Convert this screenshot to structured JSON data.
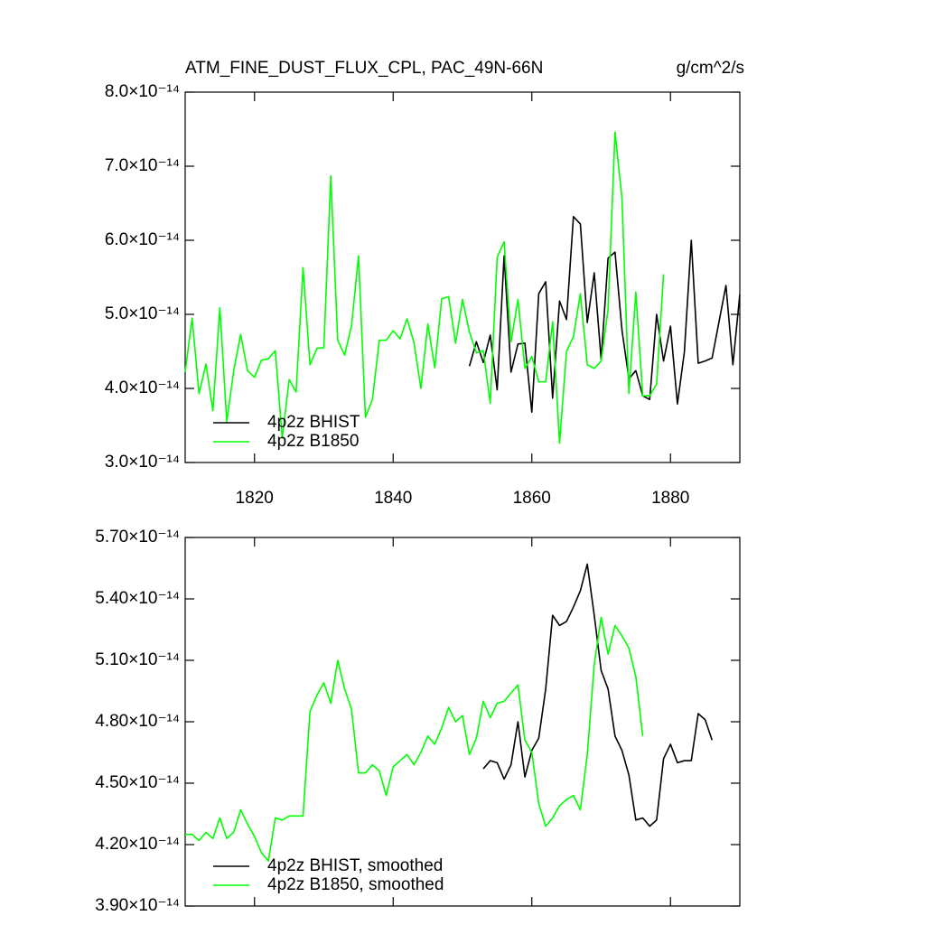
{
  "chart_data": [
    {
      "type": "line",
      "title": "ATM_FINE_DUST_FLUX_CPL, PAC_49N-66N",
      "units_label": "g/cm^2/s",
      "xlim": [
        1810,
        1890
      ],
      "xticks": [
        1820,
        1840,
        1860,
        1880
      ],
      "xtick_labels": true,
      "ylim": [
        3e-14,
        8e-14
      ],
      "yticks": [
        {
          "value": 3e-14,
          "label": "3.0×10⁻¹⁴"
        },
        {
          "value": 4e-14,
          "label": "4.0×10⁻¹⁴"
        },
        {
          "value": 5e-14,
          "label": "5.0×10⁻¹⁴"
        },
        {
          "value": 6e-14,
          "label": "6.0×10⁻¹⁴"
        },
        {
          "value": 7e-14,
          "label": "7.0×10⁻¹⁴"
        },
        {
          "value": 8e-14,
          "label": "8.0×10⁻¹⁴"
        }
      ],
      "legend": "lower left",
      "series": [
        {
          "name": "4p2z BHIST",
          "color": "#000000",
          "x": [
            1851,
            1852,
            1853,
            1854,
            1855,
            1856,
            1857,
            1858,
            1859,
            1860,
            1861,
            1862,
            1863,
            1864,
            1865,
            1866,
            1867,
            1868,
            1869,
            1870,
            1871,
            1872,
            1873,
            1874,
            1875,
            1876,
            1877,
            1878,
            1879,
            1880,
            1881,
            1882,
            1883,
            1884,
            1885,
            1886,
            1887,
            1888,
            1889,
            1890
          ],
          "values": [
            4.3e-14,
            4.63e-14,
            4.35e-14,
            4.72e-14,
            3.98e-14,
            5.79e-14,
            4.22e-14,
            4.6e-14,
            4.61e-14,
            3.68e-14,
            5.28e-14,
            5.44e-14,
            3.87e-14,
            5.18e-14,
            4.93e-14,
            6.32e-14,
            6.22e-14,
            4.89e-14,
            5.56e-14,
            4.39e-14,
            5.76e-14,
            5.84e-14,
            4.79e-14,
            4.13e-14,
            4.24e-14,
            3.9e-14,
            3.85e-14,
            5e-14,
            4.37e-14,
            4.84e-14,
            3.79e-14,
            4.49e-14,
            6e-14,
            4.34e-14,
            4.37e-14,
            4.41e-14,
            4.9e-14,
            5.39e-14,
            4.32e-14,
            5.27e-14
          ]
        },
        {
          "name": "4p2z B1850",
          "color": "#00ff00",
          "x": [
            1810,
            1811,
            1812,
            1813,
            1814,
            1815,
            1816,
            1817,
            1818,
            1819,
            1820,
            1821,
            1822,
            1823,
            1824,
            1825,
            1826,
            1827,
            1828,
            1829,
            1830,
            1831,
            1832,
            1833,
            1834,
            1835,
            1836,
            1837,
            1838,
            1839,
            1840,
            1841,
            1842,
            1843,
            1844,
            1845,
            1846,
            1847,
            1848,
            1849,
            1850,
            1851,
            1852,
            1853,
            1854,
            1855,
            1856,
            1857,
            1858,
            1859,
            1860,
            1861,
            1862,
            1863,
            1864,
            1865,
            1866,
            1867,
            1868,
            1869,
            1870,
            1871,
            1872,
            1873,
            1874,
            1875,
            1876,
            1877,
            1878,
            1879
          ],
          "values": [
            4.22e-14,
            4.95e-14,
            3.93e-14,
            4.33e-14,
            3.7e-14,
            5.09e-14,
            3.55e-14,
            4.24e-14,
            4.73e-14,
            4.24e-14,
            4.15e-14,
            4.38e-14,
            4.4e-14,
            4.51e-14,
            3.33e-14,
            4.12e-14,
            3.95e-14,
            5.63e-14,
            4.32e-14,
            4.54e-14,
            4.55e-14,
            6.87e-14,
            4.65e-14,
            4.45e-14,
            4.85e-14,
            5.79e-14,
            3.61e-14,
            3.85e-14,
            4.65e-14,
            4.65e-14,
            4.78e-14,
            4.67e-14,
            4.94e-14,
            4.62e-14,
            4e-14,
            4.87e-14,
            4.28e-14,
            5.21e-14,
            5.24e-14,
            4.61e-14,
            5.2e-14,
            4.76e-14,
            4.48e-14,
            4.51e-14,
            3.8e-14,
            5.77e-14,
            5.98e-14,
            4.63e-14,
            5.2e-14,
            4.27e-14,
            4.43e-14,
            4.09e-14,
            4.09e-14,
            4.9e-14,
            3.26e-14,
            4.5e-14,
            4.7e-14,
            5.28e-14,
            4.32e-14,
            4.27e-14,
            4.37e-14,
            5.07e-14,
            7.46e-14,
            6.57e-14,
            3.93e-14,
            5.3e-14,
            3.9e-14,
            3.9e-14,
            4.06e-14,
            5.54e-14
          ]
        }
      ]
    },
    {
      "type": "line",
      "xlim": [
        1810,
        1890
      ],
      "xticks": [
        1820,
        1840,
        1860,
        1880
      ],
      "xtick_labels": false,
      "ylim": [
        3.9e-14,
        5.7e-14
      ],
      "yticks": [
        {
          "value": 3.9e-14,
          "label": "3.90×10⁻¹⁴"
        },
        {
          "value": 4.2e-14,
          "label": "4.20×10⁻¹⁴"
        },
        {
          "value": 4.5e-14,
          "label": "4.50×10⁻¹⁴"
        },
        {
          "value": 4.8e-14,
          "label": "4.80×10⁻¹⁴"
        },
        {
          "value": 5.1e-14,
          "label": "5.10×10⁻¹⁴"
        },
        {
          "value": 5.4e-14,
          "label": "5.40×10⁻¹⁴"
        },
        {
          "value": 5.7e-14,
          "label": "5.70×10⁻¹⁴"
        }
      ],
      "legend": "lower left",
      "series": [
        {
          "name": "4p2z BHIST, smoothed",
          "color": "#000000",
          "x": [
            1853,
            1854,
            1855,
            1856,
            1857,
            1858,
            1859,
            1860,
            1861,
            1862,
            1863,
            1864,
            1865,
            1866,
            1867,
            1868,
            1869,
            1870,
            1871,
            1872,
            1873,
            1874,
            1875,
            1876,
            1877,
            1878,
            1879,
            1880,
            1881,
            1882,
            1883,
            1884,
            1885,
            1886
          ],
          "values": [
            4.57e-14,
            4.61e-14,
            4.6e-14,
            4.52e-14,
            4.59e-14,
            4.8e-14,
            4.53e-14,
            4.66e-14,
            4.72e-14,
            4.96e-14,
            5.32e-14,
            5.27e-14,
            5.29e-14,
            5.36e-14,
            5.44e-14,
            5.57e-14,
            5.32e-14,
            5.05e-14,
            4.96e-14,
            4.73e-14,
            4.66e-14,
            4.54e-14,
            4.32e-14,
            4.33e-14,
            4.29e-14,
            4.32e-14,
            4.62e-14,
            4.69e-14,
            4.6e-14,
            4.61e-14,
            4.61e-14,
            4.84e-14,
            4.81e-14,
            4.71e-14
          ]
        },
        {
          "name": "4p2z B1850, smoothed",
          "color": "#00ff00",
          "x": [
            1810,
            1811,
            1812,
            1813,
            1814,
            1815,
            1816,
            1817,
            1818,
            1819,
            1820,
            1821,
            1822,
            1823,
            1824,
            1825,
            1826,
            1827,
            1828,
            1829,
            1830,
            1831,
            1832,
            1833,
            1834,
            1835,
            1836,
            1837,
            1838,
            1839,
            1840,
            1841,
            1842,
            1843,
            1844,
            1845,
            1846,
            1847,
            1848,
            1849,
            1850,
            1851,
            1852,
            1853,
            1854,
            1855,
            1856,
            1857,
            1858,
            1859,
            1860,
            1861,
            1862,
            1863,
            1864,
            1865,
            1866,
            1867,
            1868,
            1869,
            1870,
            1871,
            1872,
            1873,
            1874,
            1875,
            1876
          ],
          "values": [
            4.25e-14,
            4.25e-14,
            4.22e-14,
            4.26e-14,
            4.23e-14,
            4.33e-14,
            4.23e-14,
            4.26e-14,
            4.37e-14,
            4.3e-14,
            4.24e-14,
            4.16e-14,
            4.12e-14,
            4.33e-14,
            4.32e-14,
            4.34e-14,
            4.34e-14,
            4.34e-14,
            4.85e-14,
            4.93e-14,
            4.99e-14,
            4.89e-14,
            5.1e-14,
            4.96e-14,
            4.86e-14,
            4.55e-14,
            4.55e-14,
            4.59e-14,
            4.56e-14,
            4.44e-14,
            4.58e-14,
            4.61e-14,
            4.64e-14,
            4.59e-14,
            4.65e-14,
            4.73e-14,
            4.69e-14,
            4.77e-14,
            4.87e-14,
            4.8e-14,
            4.83e-14,
            4.64e-14,
            4.72e-14,
            4.9e-14,
            4.82e-14,
            4.89e-14,
            4.9e-14,
            4.94e-14,
            4.98e-14,
            4.71e-14,
            4.65e-14,
            4.4e-14,
            4.29e-14,
            4.33e-14,
            4.39e-14,
            4.42e-14,
            4.44e-14,
            4.37e-14,
            4.64e-14,
            5.08e-14,
            5.31e-14,
            5.13e-14,
            5.27e-14,
            5.22e-14,
            5.16e-14,
            5.02e-14,
            4.73e-14
          ]
        }
      ]
    }
  ]
}
